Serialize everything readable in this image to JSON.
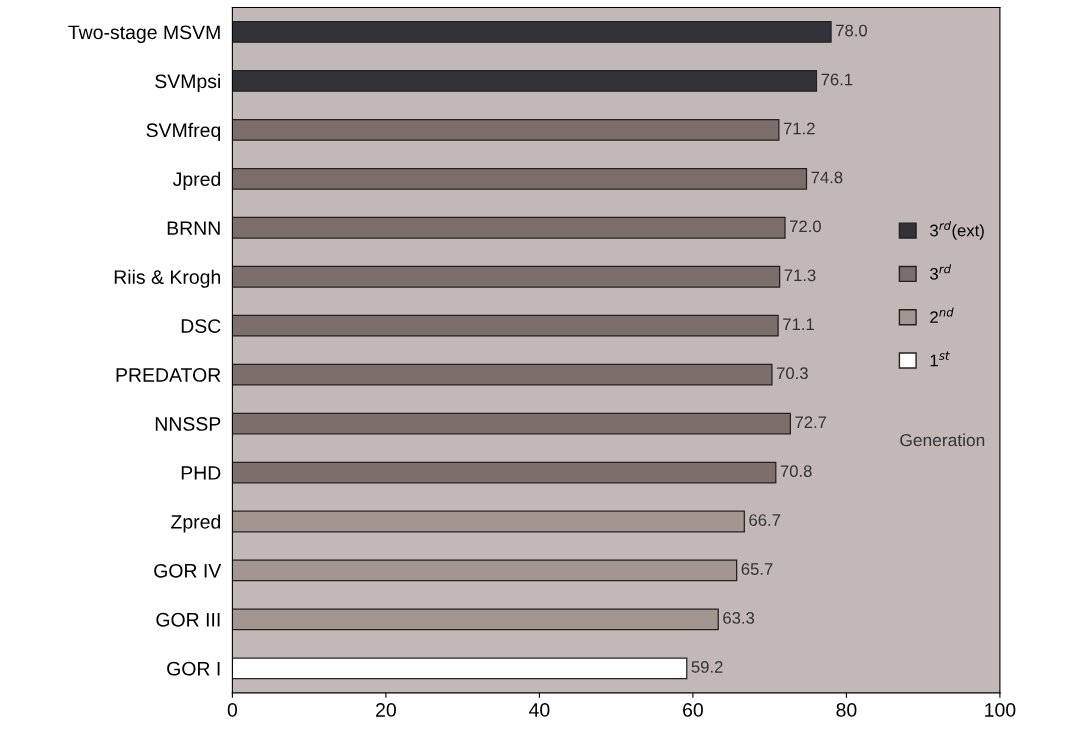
{
  "chart_data": {
    "type": "bar",
    "orientation": "horizontal",
    "categories": [
      "Two-stage MSVM",
      "SVMpsi",
      "SVMfreq",
      "Jpred",
      "BRNN",
      "Riis & Krogh",
      "DSC",
      "PREDATOR",
      "NNSSP",
      "PHD",
      "Zpred",
      "GOR IV",
      "GOR III",
      "GOR I"
    ],
    "series": [
      {
        "name": "3$^{rd}$(ext)",
        "color": "#333238",
        "values": [
          78.0,
          76.1,
          null,
          null,
          null,
          null,
          null,
          null,
          null,
          null,
          null,
          null,
          null,
          null
        ],
        "value_labels": [
          "78.0",
          "76.1",
          null,
          null,
          null,
          null,
          null,
          null,
          null,
          null,
          null,
          null,
          null,
          null
        ]
      },
      {
        "name": "3$^{rd}$",
        "color": "#7b6e6b",
        "values": [
          null,
          null,
          71.2,
          74.8,
          72.0,
          71.3,
          71.1,
          70.3,
          72.7,
          70.8,
          null,
          null,
          null,
          null
        ],
        "value_labels": [
          null,
          null,
          "71.2",
          "74.8",
          "72.0",
          "71.3",
          "71.1",
          "70.3",
          "72.7",
          "70.8",
          null,
          null,
          null,
          null
        ]
      },
      {
        "name": "2$^{nd}$",
        "color": "#a39590",
        "values": [
          null,
          null,
          null,
          null,
          null,
          null,
          null,
          null,
          null,
          null,
          66.7,
          65.7,
          63.3,
          null
        ],
        "value_labels": [
          null,
          null,
          null,
          null,
          null,
          null,
          null,
          null,
          null,
          null,
          "66.7",
          "65.7",
          "63.3",
          null
        ]
      },
      {
        "name": "1$^{st}$",
        "color": "#ffffff",
        "values": [
          null,
          null,
          null,
          null,
          null,
          null,
          null,
          null,
          null,
          null,
          null,
          null,
          null,
          59.2
        ],
        "value_labels": [
          null,
          null,
          null,
          null,
          null,
          null,
          null,
          null,
          null,
          null,
          null,
          null,
          null,
          "59.2"
        ]
      }
    ],
    "xlim": [
      0,
      100
    ],
    "xticks": [
      0,
      20,
      40,
      60,
      80,
      100
    ],
    "legend": "right",
    "legend_title": "Generation",
    "grid": false
  }
}
